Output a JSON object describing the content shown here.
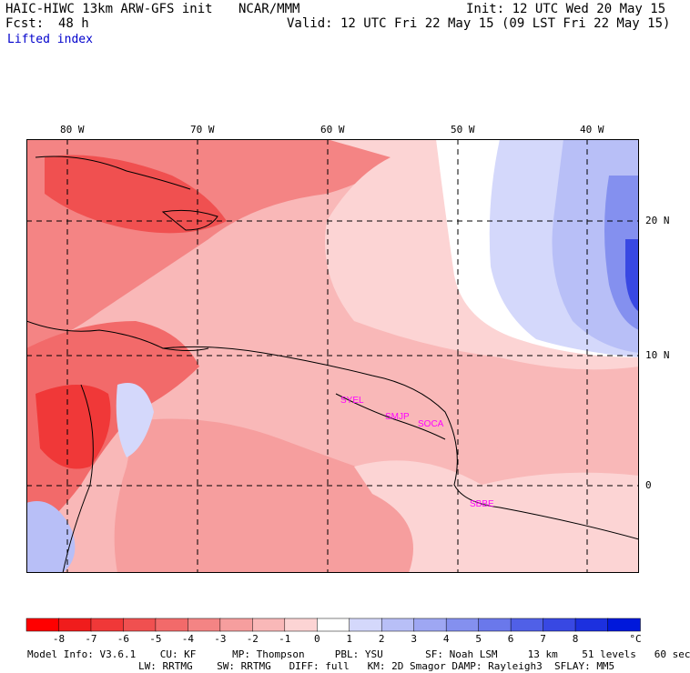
{
  "header": {
    "model": "HAIC-HIWC 13km ARW-GFS init",
    "org": "NCAR/MMM",
    "init": "Init: 12 UTC Wed 20 May 15",
    "fcst_label": "Fcst:",
    "fcst_value": "48 h",
    "valid": "Valid: 12 UTC Fri 22 May 15 (09 LST Fri 22 May 15)",
    "field": "Lifted index"
  },
  "map": {
    "lon_labels": [
      "80 W",
      "70 W",
      "60 W",
      "50 W",
      "40 W"
    ],
    "lat_labels": [
      "20 N",
      "10 N",
      "0"
    ],
    "stations": [
      "SYEL",
      "SMJP",
      "SOCA",
      "SBBE"
    ],
    "colors": {
      "dark_red": "#e8343a",
      "red": "#f26a6a",
      "light_red": "#f9b3b3",
      "pale_red": "#fde1e1",
      "pale_blue": "#e0e4fb",
      "light_blue": "#b3bcf5",
      "blue": "#7d8ced",
      "dark_blue": "#3a48e0",
      "station": "#ff00ff"
    }
  },
  "colorbar": {
    "labels": [
      "-8",
      "-7",
      "-6",
      "-5",
      "-4",
      "-3",
      "-2",
      "-1",
      "0",
      "1",
      "2",
      "3",
      "4",
      "5",
      "6",
      "7",
      "8"
    ],
    "unit": "°C",
    "colors": [
      "#ff0000",
      "#f01c1c",
      "#f03838",
      "#f05050",
      "#f26a6a",
      "#f48484",
      "#f69e9e",
      "#f9b8b8",
      "#fcd4d4",
      "#ffffff",
      "#d4d8fb",
      "#b8bff7",
      "#9ea7f3",
      "#8490ef",
      "#6a78eb",
      "#5060e7",
      "#3848e3",
      "#1c30df",
      "#0018db"
    ]
  },
  "footer": {
    "line1": "Model Info: V3.6.1    CU: KF      MP: Thompson     PBL: YSU       SF: Noah LSM     13 km    51 levels   60 sec",
    "line2": "LW: RRTMG    SW: RRTMG   DIFF: full   KM: 2D Smagor DAMP: Rayleigh3  SFLAY: MM5"
  }
}
